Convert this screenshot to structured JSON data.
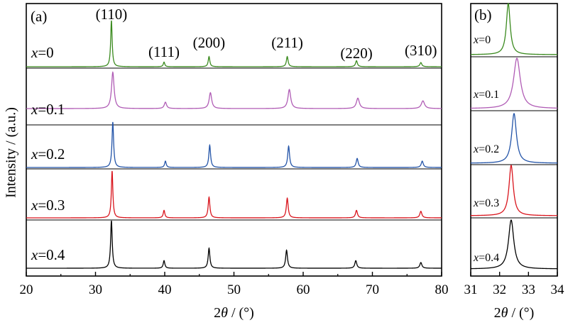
{
  "chart_data": [
    {
      "panel": "(a)",
      "type": "line",
      "xlabel_prefix": "2",
      "xlabel_symbol": "θ",
      "xlabel_suffix": " / (°)",
      "ylabel": "Intensity / (a.u.)",
      "xlim": [
        20,
        80
      ],
      "xticks": [
        20,
        30,
        40,
        50,
        60,
        70,
        80
      ],
      "grid": false,
      "peak_labels": [
        {
          "label": "(110)",
          "x": 32.3
        },
        {
          "label": "(111)",
          "x": 39.9
        },
        {
          "label": "(200)",
          "x": 46.4
        },
        {
          "label": "(211)",
          "x": 57.7
        },
        {
          "label": "(220)",
          "x": 67.7
        },
        {
          "label": "(310)",
          "x": 77.0
        }
      ],
      "series": [
        {
          "name_var": "x",
          "name_value": "=0",
          "color": "#3a8a1e",
          "peaks": [
            [
              32.3,
              1.0,
              0.13
            ],
            [
              39.9,
              0.1,
              0.13
            ],
            [
              46.4,
              0.22,
              0.14
            ],
            [
              57.7,
              0.22,
              0.15
            ],
            [
              67.7,
              0.13,
              0.16
            ],
            [
              77.0,
              0.09,
              0.17
            ]
          ]
        },
        {
          "name_var": "x",
          "name_value": "=0.1",
          "color": "#b05cb5",
          "peaks": [
            [
              32.5,
              0.8,
              0.22
            ],
            [
              40.1,
              0.14,
              0.2
            ],
            [
              46.6,
              0.35,
              0.22
            ],
            [
              58.0,
              0.42,
              0.24
            ],
            [
              67.9,
              0.23,
              0.26
            ],
            [
              77.3,
              0.17,
              0.28
            ]
          ]
        },
        {
          "name_var": "x",
          "name_value": "=0.2",
          "color": "#2354a8",
          "peaks": [
            [
              32.5,
              1.0,
              0.14
            ],
            [
              40.1,
              0.14,
              0.14
            ],
            [
              46.5,
              0.49,
              0.15
            ],
            [
              57.9,
              0.47,
              0.16
            ],
            [
              67.8,
              0.2,
              0.17
            ],
            [
              77.2,
              0.14,
              0.18
            ]
          ]
        },
        {
          "name_var": "x",
          "name_value": "=0.3",
          "color": "#d9141c",
          "peaks": [
            [
              32.4,
              1.0,
              0.13
            ],
            [
              39.9,
              0.16,
              0.14
            ],
            [
              46.4,
              0.44,
              0.15
            ],
            [
              57.7,
              0.42,
              0.16
            ],
            [
              67.7,
              0.16,
              0.17
            ],
            [
              77.0,
              0.14,
              0.18
            ]
          ]
        },
        {
          "name_var": "x",
          "name_value": "=0.4",
          "color": "#000000",
          "peaks": [
            [
              32.3,
              1.0,
              0.14
            ],
            [
              39.9,
              0.16,
              0.14
            ],
            [
              46.4,
              0.42,
              0.15
            ],
            [
              57.6,
              0.38,
              0.16
            ],
            [
              67.6,
              0.16,
              0.17
            ],
            [
              77.0,
              0.12,
              0.18
            ]
          ]
        }
      ]
    },
    {
      "panel": "(b)",
      "type": "line",
      "xlabel_prefix": "2",
      "xlabel_symbol": "θ",
      "xlabel_suffix": " / (°)",
      "xlim": [
        31,
        34
      ],
      "xticks": [
        31,
        32,
        33,
        34
      ],
      "grid": false,
      "series": [
        {
          "name_var": "x",
          "name_value": "=0",
          "color": "#3a8a1e",
          "peaks": [
            [
              32.3,
              1.0,
              0.08
            ]
          ]
        },
        {
          "name_var": "x",
          "name_value": "=0.1",
          "color": "#b05cb5",
          "peaks": [
            [
              32.6,
              1.0,
              0.14
            ]
          ]
        },
        {
          "name_var": "x",
          "name_value": "=0.2",
          "color": "#2354a8",
          "peaks": [
            [
              32.5,
              1.0,
              0.1
            ]
          ]
        },
        {
          "name_var": "x",
          "name_value": "=0.3",
          "color": "#d9141c",
          "peaks": [
            [
              32.4,
              1.0,
              0.09
            ]
          ]
        },
        {
          "name_var": "x",
          "name_value": "=0.4",
          "color": "#000000",
          "peaks": [
            [
              32.4,
              1.0,
              0.11
            ]
          ]
        }
      ]
    }
  ]
}
